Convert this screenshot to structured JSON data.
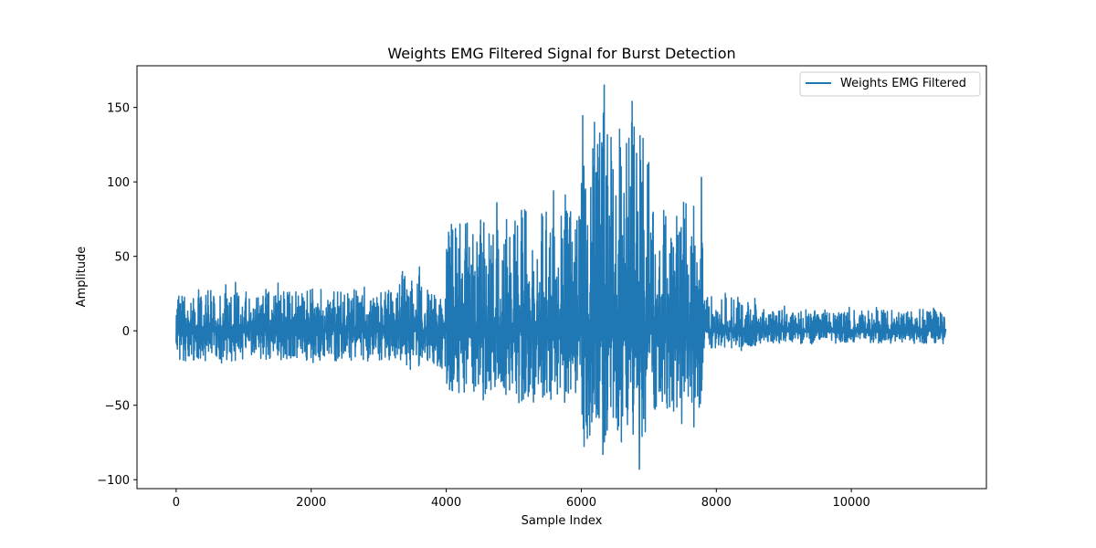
{
  "chart_data": {
    "type": "line",
    "title": "Weights EMG Filtered Signal for Burst Detection",
    "xlabel": "Sample Index",
    "ylabel": "Amplitude",
    "xlim": [
      -580,
      12000
    ],
    "ylim": [
      -106,
      178
    ],
    "xticks": [
      0,
      2000,
      4000,
      6000,
      8000,
      10000
    ],
    "xtick_labels": [
      "0",
      "2000",
      "4000",
      "6000",
      "8000",
      "10000"
    ],
    "yticks": [
      -100,
      -50,
      0,
      50,
      100,
      150
    ],
    "ytick_labels": [
      "−100",
      "−50",
      "0",
      "50",
      "100",
      "150"
    ],
    "grid": false,
    "legend_position": "top-right",
    "series": [
      {
        "name": "Weights EMG Filtered",
        "color": "#1f77b4",
        "n_samples": 11400,
        "segments": [
          {
            "x_start": 0,
            "x_end": 3300,
            "y_min": -24,
            "y_max": 33
          },
          {
            "x_start": 3300,
            "x_end": 3750,
            "y_min": -29,
            "y_max": 45
          },
          {
            "x_start": 3750,
            "x_end": 4000,
            "y_min": -30,
            "y_max": 30
          },
          {
            "x_start": 4000,
            "x_end": 5000,
            "y_min": -51,
            "y_max": 86
          },
          {
            "x_start": 5000,
            "x_end": 6000,
            "y_min": -57,
            "y_max": 96
          },
          {
            "x_start": 6000,
            "x_end": 7000,
            "y_min": -93,
            "y_max": 165
          },
          {
            "x_start": 7000,
            "x_end": 7800,
            "y_min": -66,
            "y_max": 103
          },
          {
            "x_start": 7800,
            "x_end": 8600,
            "y_min": -14,
            "y_max": 27
          },
          {
            "x_start": 8600,
            "x_end": 11400,
            "y_min": -10,
            "y_max": 17
          }
        ],
        "peaks": [
          {
            "x": 6340,
            "y": 165
          },
          {
            "x": 6870,
            "y": 131
          },
          {
            "x": 7000,
            "y": 113
          },
          {
            "x": 7780,
            "y": 103
          },
          {
            "x": 6860,
            "y": -93
          },
          {
            "x": 6320,
            "y": -83
          },
          {
            "x": 4750,
            "y": 86
          }
        ]
      }
    ]
  }
}
